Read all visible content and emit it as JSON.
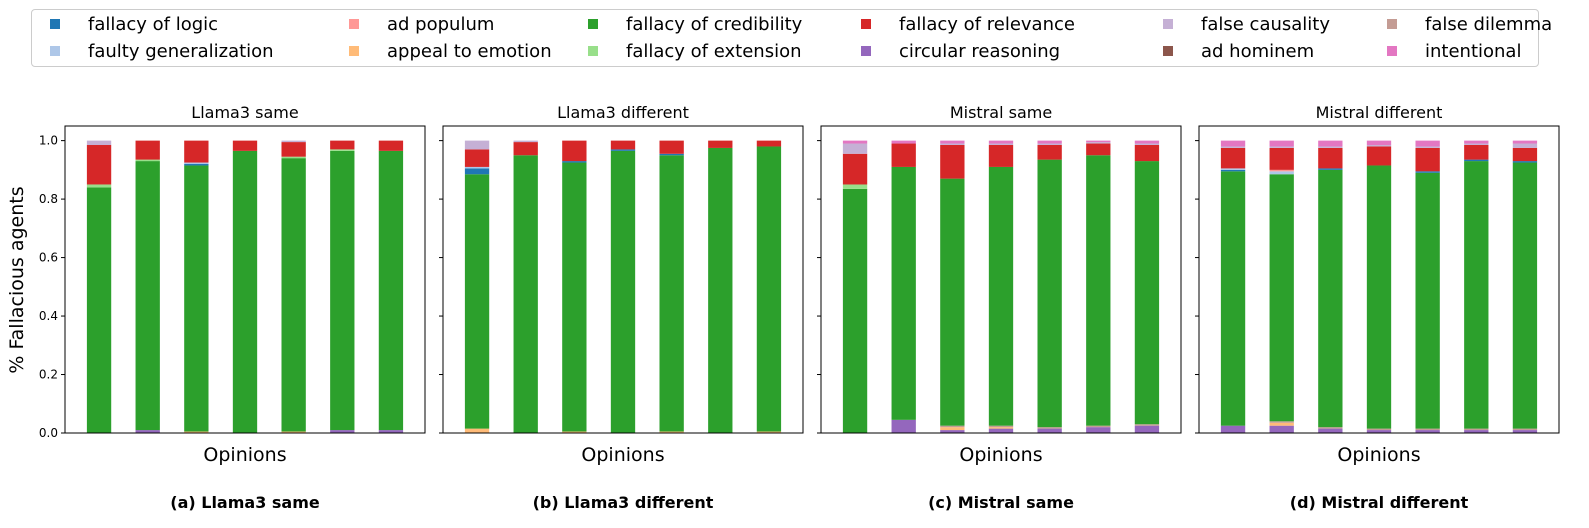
{
  "chart_data": {
    "type": "bar",
    "stacked": true,
    "ylabel": "% Fallacious agents",
    "xlabel": "Opinions",
    "ylim": [
      0,
      1.05
    ],
    "yticks": [
      "0.0",
      "0.2",
      "0.4",
      "0.6",
      "0.8",
      "1.0"
    ],
    "legend_position": "top",
    "legend": [
      {
        "name": "fallacy of logic",
        "color": "#1f77b4"
      },
      {
        "name": "faulty generalization",
        "color": "#aec7e8"
      },
      {
        "name": "ad populum",
        "color": "#ff9896"
      },
      {
        "name": "appeal to emotion",
        "color": "#ffbb78"
      },
      {
        "name": "fallacy of credibility",
        "color": "#2ca02c"
      },
      {
        "name": "fallacy of extension",
        "color": "#98df8a"
      },
      {
        "name": "fallacy of relevance",
        "color": "#d62728"
      },
      {
        "name": "circular reasoning",
        "color": "#9467bd"
      },
      {
        "name": "false causality",
        "color": "#c5b0d5"
      },
      {
        "name": "ad hominem",
        "color": "#8c564b"
      },
      {
        "name": "false dilemma",
        "color": "#c49c94"
      },
      {
        "name": "intentional",
        "color": "#e377c2"
      }
    ],
    "stack_order": [
      "circular reasoning",
      "appeal to emotion",
      "ad hominem",
      "false dilemma",
      "fallacy of credibility",
      "fallacy of logic",
      "faulty generalization",
      "fallacy of extension",
      "ad populum",
      "fallacy of relevance",
      "false causality",
      "intentional"
    ],
    "panels": [
      {
        "title": "Llama3 same",
        "caption": "(a) Llama3 same",
        "bars": [
          {
            "fallacy of credibility": 0.84,
            "fallacy of extension": 0.01,
            "fallacy of relevance": 0.135,
            "false causality": 0.015
          },
          {
            "circular reasoning": 0.01,
            "fallacy of credibility": 0.92,
            "fallacy of extension": 0.005,
            "fallacy of relevance": 0.065
          },
          {
            "appeal to emotion": 0.005,
            "fallacy of credibility": 0.91,
            "fallacy of logic": 0.005,
            "faulty generalization": 0.005,
            "fallacy of relevance": 0.075
          },
          {
            "fallacy of credibility": 0.965,
            "fallacy of relevance": 0.035
          },
          {
            "appeal to emotion": 0.005,
            "fallacy of credibility": 0.935,
            "fallacy of extension": 0.005,
            "fallacy of relevance": 0.05,
            "false causality": 0.005
          },
          {
            "circular reasoning": 0.01,
            "fallacy of credibility": 0.955,
            "fallacy of extension": 0.005,
            "fallacy of relevance": 0.03
          },
          {
            "circular reasoning": 0.01,
            "fallacy of credibility": 0.955,
            "fallacy of relevance": 0.035
          }
        ]
      },
      {
        "title": "Llama3 different",
        "caption": "(b) Llama3 different",
        "bars": [
          {
            "appeal to emotion": 0.015,
            "fallacy of credibility": 0.87,
            "fallacy of logic": 0.02,
            "faulty generalization": 0.005,
            "fallacy of relevance": 0.06,
            "false causality": 0.03
          },
          {
            "fallacy of credibility": 0.95,
            "fallacy of relevance": 0.045,
            "false causality": 0.005
          },
          {
            "appeal to emotion": 0.005,
            "fallacy of credibility": 0.92,
            "fallacy of logic": 0.005,
            "fallacy of relevance": 0.07
          },
          {
            "fallacy of credibility": 0.965,
            "fallacy of logic": 0.005,
            "fallacy of relevance": 0.03
          },
          {
            "appeal to emotion": 0.005,
            "fallacy of credibility": 0.945,
            "fallacy of logic": 0.005,
            "fallacy of relevance": 0.045
          },
          {
            "fallacy of credibility": 0.975,
            "fallacy of relevance": 0.025
          },
          {
            "appeal to emotion": 0.005,
            "fallacy of credibility": 0.975,
            "fallacy of relevance": 0.02
          }
        ]
      },
      {
        "title": "Mistral same",
        "caption": "(c) Mistral same",
        "bars": [
          {
            "fallacy of credibility": 0.835,
            "fallacy of extension": 0.015,
            "fallacy of relevance": 0.105,
            "false causality": 0.035,
            "intentional": 0.01
          },
          {
            "circular reasoning": 0.045,
            "fallacy of credibility": 0.865,
            "fallacy of relevance": 0.08,
            "intentional": 0.01
          },
          {
            "circular reasoning": 0.01,
            "appeal to emotion": 0.01,
            "false dilemma": 0.005,
            "fallacy of credibility": 0.845,
            "fallacy of relevance": 0.115,
            "false causality": 0.005,
            "intentional": 0.01
          },
          {
            "circular reasoning": 0.015,
            "appeal to emotion": 0.005,
            "false dilemma": 0.005,
            "fallacy of credibility": 0.885,
            "fallacy of relevance": 0.075,
            "false causality": 0.005,
            "intentional": 0.01
          },
          {
            "circular reasoning": 0.015,
            "false dilemma": 0.005,
            "fallacy of credibility": 0.915,
            "fallacy of relevance": 0.05,
            "false causality": 0.005,
            "intentional": 0.01
          },
          {
            "circular reasoning": 0.02,
            "false dilemma": 0.005,
            "fallacy of credibility": 0.925,
            "fallacy of relevance": 0.04,
            "false causality": 0.005,
            "intentional": 0.005
          },
          {
            "circular reasoning": 0.025,
            "false dilemma": 0.005,
            "fallacy of credibility": 0.9,
            "fallacy of relevance": 0.055,
            "false causality": 0.005,
            "intentional": 0.01
          }
        ]
      },
      {
        "title": "Mistral different",
        "caption": "(d) Mistral different",
        "bars": [
          {
            "circular reasoning": 0.025,
            "fallacy of credibility": 0.87,
            "fallacy of logic": 0.005,
            "faulty generalization": 0.005,
            "fallacy of relevance": 0.07,
            "false causality": 0.005,
            "intentional": 0.02
          },
          {
            "circular reasoning": 0.025,
            "appeal to emotion": 0.01,
            "false dilemma": 0.005,
            "fallacy of credibility": 0.845,
            "faulty generalization": 0.01,
            "ad populum": 0.005,
            "fallacy of relevance": 0.075,
            "false causality": 0.005,
            "intentional": 0.02
          },
          {
            "circular reasoning": 0.015,
            "false dilemma": 0.005,
            "fallacy of credibility": 0.88,
            "fallacy of logic": 0.005,
            "fallacy of relevance": 0.07,
            "false causality": 0.005,
            "intentional": 0.02
          },
          {
            "circular reasoning": 0.01,
            "false dilemma": 0.005,
            "fallacy of credibility": 0.9,
            "fallacy of relevance": 0.065,
            "false causality": 0.005,
            "intentional": 0.015
          },
          {
            "circular reasoning": 0.01,
            "false dilemma": 0.005,
            "fallacy of credibility": 0.875,
            "fallacy of logic": 0.005,
            "fallacy of relevance": 0.08,
            "false causality": 0.005,
            "intentional": 0.02
          },
          {
            "circular reasoning": 0.01,
            "false dilemma": 0.005,
            "fallacy of credibility": 0.915,
            "fallacy of logic": 0.005,
            "fallacy of relevance": 0.05,
            "false causality": 0.005,
            "intentional": 0.01
          },
          {
            "circular reasoning": 0.01,
            "false dilemma": 0.005,
            "fallacy of credibility": 0.91,
            "fallacy of logic": 0.005,
            "fallacy of relevance": 0.045,
            "false causality": 0.015,
            "intentional": 0.01
          }
        ]
      }
    ]
  }
}
